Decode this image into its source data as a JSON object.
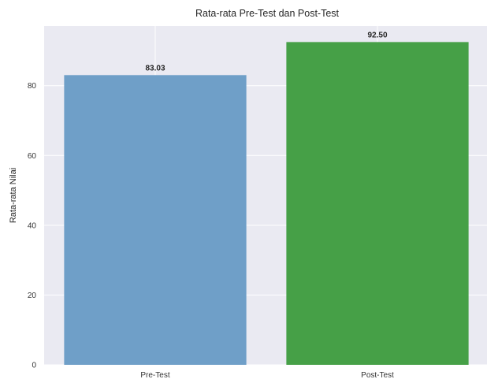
{
  "chart_data": {
    "type": "bar",
    "title": "Rata-rata Pre-Test dan Post-Test",
    "xlabel": "",
    "ylabel": "Rata-rata Nilai",
    "categories": [
      "Pre-Test",
      "Post-Test"
    ],
    "values": [
      83.03,
      92.5
    ],
    "value_labels": [
      "83.03",
      "92.50"
    ],
    "colors": [
      "#6f9fc8",
      "#46a047"
    ],
    "ylim": [
      0,
      97.1
    ],
    "yticks": [
      0,
      20,
      40,
      60,
      80
    ],
    "ytick_labels": [
      "0",
      "20",
      "40",
      "60",
      "80"
    ],
    "grid": true,
    "plot_background": "#eaeaf2"
  }
}
